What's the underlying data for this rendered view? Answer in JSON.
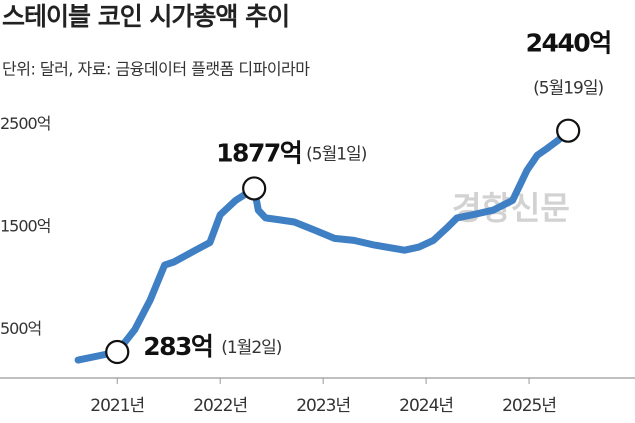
{
  "chart_data": {
    "type": "line",
    "title": "스테이블 코인 시가총액 추이",
    "subtitle": "단위: 달러, 자료: 금융데이터 플랫폼 디파이라마",
    "watermark": "경향신문",
    "x": [
      2020.62,
      2021.0,
      2021.17,
      2021.32,
      2021.46,
      2021.55,
      2021.76,
      2021.9,
      2022.0,
      2022.15,
      2022.29,
      2022.33,
      2022.37,
      2022.44,
      2022.58,
      2022.72,
      2022.92,
      2023.11,
      2023.3,
      2023.5,
      2023.79,
      2023.93,
      2024.07,
      2024.2,
      2024.3,
      2024.45,
      2024.65,
      2024.84,
      2024.98,
      2025.08,
      2025.18,
      2025.28,
      2025.38
    ],
    "series": [
      {
        "name": "스테이블 코인 시가총액",
        "color": "#3f7fc4",
        "values": [
          204,
          283,
          500,
          790,
          1130,
          1160,
          1275,
          1350,
          1620,
          1760,
          1850,
          1877,
          1665,
          1590,
          1570,
          1550,
          1470,
          1390,
          1370,
          1325,
          1275,
          1305,
          1370,
          1490,
          1590,
          1620,
          1665,
          1760,
          2055,
          2200,
          2270,
          2345,
          2440
        ]
      }
    ],
    "annotations": [
      {
        "x": 2021.0,
        "value": 283,
        "label": "283억",
        "date": "(1월2일)"
      },
      {
        "x": 2022.33,
        "value": 1877,
        "label": "1877억",
        "date": "(5월1일)"
      },
      {
        "x": 2025.38,
        "value": 2440,
        "label": "2440억",
        "date": "(5월19일)"
      }
    ],
    "xlim": [
      2019.9,
      2026.0
    ],
    "xticks": [
      {
        "value": 2021,
        "label": "2021년"
      },
      {
        "value": 2022,
        "label": "2022년"
      },
      {
        "value": 2023,
        "label": "2023년"
      },
      {
        "value": 2024,
        "label": "2024년"
      },
      {
        "value": 2025,
        "label": "2025년"
      }
    ],
    "ylim": [
      0,
      2700
    ],
    "yticks": [
      {
        "value": 500,
        "label": "500억"
      },
      {
        "value": 1500,
        "label": "1500억"
      },
      {
        "value": 2500,
        "label": "2500억"
      }
    ],
    "grid": false
  }
}
